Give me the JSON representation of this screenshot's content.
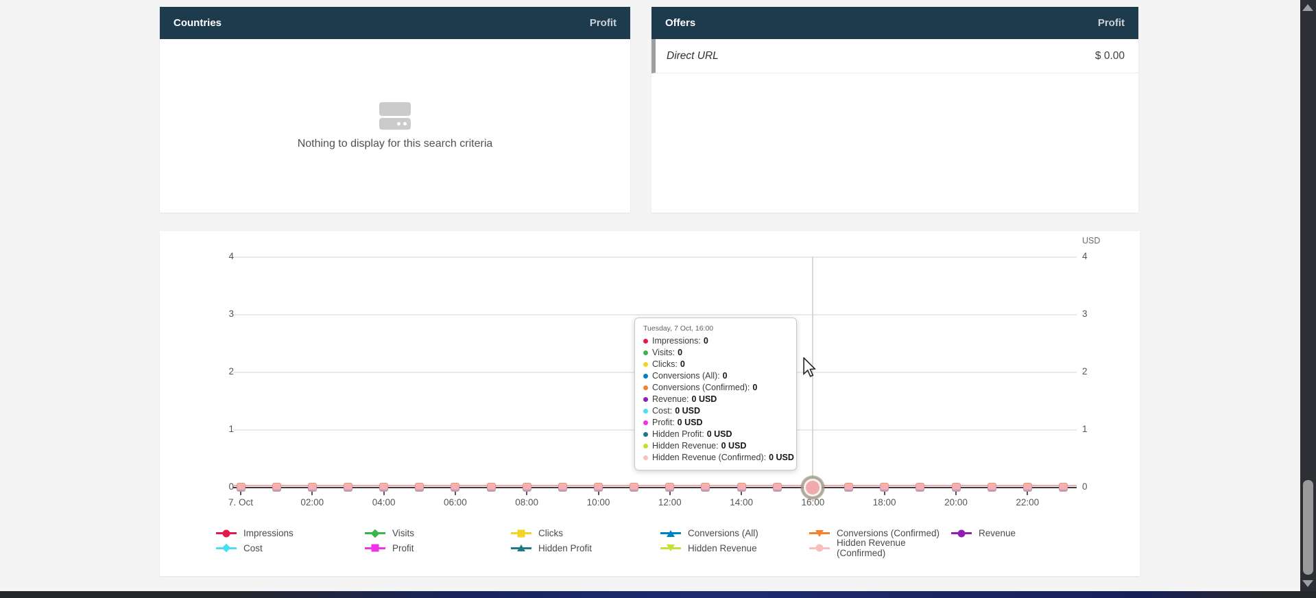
{
  "panels": {
    "countries": {
      "title": "Countries",
      "column": "Profit",
      "empty_text": "Nothing to display for this search criteria"
    },
    "offers": {
      "title": "Offers",
      "column": "Profit",
      "rows": [
        {
          "name": "Direct URL",
          "value": "$ 0.00"
        }
      ]
    }
  },
  "chart_data": {
    "type": "line",
    "title": "",
    "xlabel": "",
    "ylabel": "",
    "y_axis_unit": "USD",
    "ylim": [
      0,
      4
    ],
    "yticks": [
      0,
      1,
      2,
      3,
      4
    ],
    "grid": true,
    "legend_position": "bottom",
    "x_tick_labels": [
      "7. Oct",
      "02:00",
      "04:00",
      "06:00",
      "08:00",
      "10:00",
      "12:00",
      "14:00",
      "16:00",
      "18:00",
      "20:00",
      "22:00"
    ],
    "n_points": 24,
    "hover_index": 16,
    "series": [
      {
        "name": "Impressions",
        "color": "#e6194b",
        "marker": "circle",
        "values": [
          0,
          0,
          0,
          0,
          0,
          0,
          0,
          0,
          0,
          0,
          0,
          0,
          0,
          0,
          0,
          0,
          0,
          0,
          0,
          0,
          0,
          0,
          0,
          0
        ]
      },
      {
        "name": "Visits",
        "color": "#3cb44b",
        "marker": "diamond",
        "values": [
          0,
          0,
          0,
          0,
          0,
          0,
          0,
          0,
          0,
          0,
          0,
          0,
          0,
          0,
          0,
          0,
          0,
          0,
          0,
          0,
          0,
          0,
          0,
          0
        ]
      },
      {
        "name": "Clicks",
        "color": "#f5d327",
        "marker": "square",
        "values": [
          0,
          0,
          0,
          0,
          0,
          0,
          0,
          0,
          0,
          0,
          0,
          0,
          0,
          0,
          0,
          0,
          0,
          0,
          0,
          0,
          0,
          0,
          0,
          0
        ]
      },
      {
        "name": "Conversions (All)",
        "color": "#0082c8",
        "marker": "tri-up",
        "values": [
          0,
          0,
          0,
          0,
          0,
          0,
          0,
          0,
          0,
          0,
          0,
          0,
          0,
          0,
          0,
          0,
          0,
          0,
          0,
          0,
          0,
          0,
          0,
          0
        ]
      },
      {
        "name": "Conversions (Confirmed)",
        "color": "#f58231",
        "marker": "tri-down",
        "values": [
          0,
          0,
          0,
          0,
          0,
          0,
          0,
          0,
          0,
          0,
          0,
          0,
          0,
          0,
          0,
          0,
          0,
          0,
          0,
          0,
          0,
          0,
          0,
          0
        ]
      },
      {
        "name": "Revenue",
        "color": "#911eb4",
        "marker": "circle",
        "values": [
          0,
          0,
          0,
          0,
          0,
          0,
          0,
          0,
          0,
          0,
          0,
          0,
          0,
          0,
          0,
          0,
          0,
          0,
          0,
          0,
          0,
          0,
          0,
          0
        ]
      },
      {
        "name": "Cost",
        "color": "#46e0f0",
        "marker": "diamond",
        "values": [
          0,
          0,
          0,
          0,
          0,
          0,
          0,
          0,
          0,
          0,
          0,
          0,
          0,
          0,
          0,
          0,
          0,
          0,
          0,
          0,
          0,
          0,
          0,
          0
        ]
      },
      {
        "name": "Profit",
        "color": "#f032e6",
        "marker": "square",
        "values": [
          0,
          0,
          0,
          0,
          0,
          0,
          0,
          0,
          0,
          0,
          0,
          0,
          0,
          0,
          0,
          0,
          0,
          0,
          0,
          0,
          0,
          0,
          0,
          0
        ]
      },
      {
        "name": "Hidden Profit",
        "color": "#1f7a85",
        "marker": "tri-up",
        "values": [
          0,
          0,
          0,
          0,
          0,
          0,
          0,
          0,
          0,
          0,
          0,
          0,
          0,
          0,
          0,
          0,
          0,
          0,
          0,
          0,
          0,
          0,
          0,
          0
        ]
      },
      {
        "name": "Hidden Revenue",
        "color": "#c7e02e",
        "marker": "tri-down",
        "values": [
          0,
          0,
          0,
          0,
          0,
          0,
          0,
          0,
          0,
          0,
          0,
          0,
          0,
          0,
          0,
          0,
          0,
          0,
          0,
          0,
          0,
          0,
          0,
          0
        ]
      },
      {
        "name": "Hidden Revenue (Confirmed)",
        "color": "#f9bfbf",
        "marker": "circle",
        "values": [
          0,
          0,
          0,
          0,
          0,
          0,
          0,
          0,
          0,
          0,
          0,
          0,
          0,
          0,
          0,
          0,
          0,
          0,
          0,
          0,
          0,
          0,
          0,
          0
        ]
      }
    ]
  },
  "tooltip": {
    "title": "Tuesday, 7 Oct, 16:00",
    "items": [
      {
        "label": "Impressions",
        "value": "0",
        "color": "#e6194b"
      },
      {
        "label": "Visits",
        "value": "0",
        "color": "#3cb44b"
      },
      {
        "label": "Clicks",
        "value": "0",
        "color": "#f5d327"
      },
      {
        "label": "Conversions (All)",
        "value": "0",
        "color": "#0082c8"
      },
      {
        "label": "Conversions (Confirmed)",
        "value": "0",
        "color": "#f58231"
      },
      {
        "label": "Revenue",
        "value": "0 USD",
        "color": "#911eb4"
      },
      {
        "label": "Cost",
        "value": "0 USD",
        "color": "#46e0f0"
      },
      {
        "label": "Profit",
        "value": "0 USD",
        "color": "#f032e6"
      },
      {
        "label": "Hidden Profit",
        "value": "0 USD",
        "color": "#1f7a85"
      },
      {
        "label": "Hidden Revenue",
        "value": "0 USD",
        "color": "#c7e02e"
      },
      {
        "label": "Hidden Revenue (Confirmed)",
        "value": "0 USD",
        "color": "#f9bfbf"
      }
    ]
  },
  "colors": {
    "header_bg": "#1e3b4d",
    "zero_line": "#f2a6ae",
    "grid_line": "#e9e9e9"
  }
}
